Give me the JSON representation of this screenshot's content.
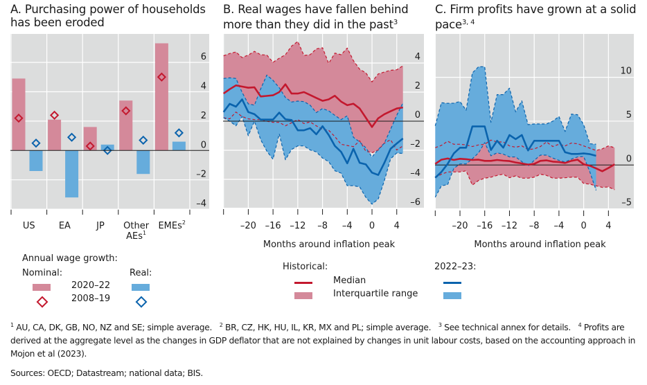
{
  "colors": {
    "nominal_bar": "#d4899a",
    "nominal_diamond": "#c3182e",
    "real_bar": "#66acdc",
    "real_diamond": "#0a63ad",
    "hist_median": "#c3182e",
    "hist_iqr": "#d4899a",
    "recent_median": "#0a63ad",
    "recent_iqr": "#66acdc",
    "plot_bg": "#dcdddd",
    "grid": "#ffffff"
  },
  "panels": {
    "a": {
      "title": "A. Purchasing power of households",
      "title2": "has been eroded"
    },
    "b": {
      "title": "B. Real wages have fallen behind",
      "title2": "more than they did in the past",
      "title2_sup": "3"
    },
    "c": {
      "title": "C. Firm profits have grown at a solid",
      "title2": "pace",
      "title2_sup": "3, 4"
    }
  },
  "legend_a": {
    "heading": "Annual wage growth:",
    "nominal": "Nominal:",
    "real": "Real:",
    "period1": "2020–22",
    "period2": "2008–19"
  },
  "legend_bc": {
    "historical": "Historical:",
    "recent": "2022–23:",
    "median": "Median",
    "iqr": "Interquartile range"
  },
  "footnotes": {
    "n1_sup": "1",
    "n1": " AU, CA, DK, GB, NO, NZ and SE; simple average.",
    "n2_sup": "2",
    "n2": " BR, CZ, HK, HU, IL, KR, MX and PL; simple average.",
    "n3_sup": "3",
    "n3": " See technical annex for details.",
    "n4_sup": "4",
    "n4a": " Profits are derived at the aggregate level as the changes in GDP deflator that are not explained by changes in unit labour costs,",
    "n4b": "based on the accounting approach in Mojon et al (2023).",
    "sources": "Sources: OECD; Datastream; national data; BIS."
  },
  "chart_data": [
    {
      "type": "bar",
      "title": "A. Purchasing power of households has been eroded",
      "categories": [
        "US",
        "EA",
        "JP",
        "Other AEs",
        "EMEs"
      ],
      "category_labels": [
        [
          "US"
        ],
        [
          "EA"
        ],
        [
          "JP"
        ],
        [
          "Other",
          "AEs"
        ],
        [
          "EMEs"
        ]
      ],
      "category_sups": [
        "",
        "",
        "",
        "1",
        "2"
      ],
      "series": [
        {
          "name": "Nominal 2020–22",
          "kind": "bar",
          "values": [
            4.9,
            2.1,
            1.6,
            3.4,
            7.3
          ]
        },
        {
          "name": "Real 2020–22",
          "kind": "bar",
          "values": [
            -1.4,
            -3.2,
            0.4,
            -1.6,
            0.6
          ]
        },
        {
          "name": "Nominal 2008–19",
          "kind": "diamond",
          "values": [
            2.2,
            2.4,
            0.3,
            2.7,
            5.0
          ]
        },
        {
          "name": "Real 2008–19",
          "kind": "diamond",
          "values": [
            0.5,
            0.9,
            0.0,
            0.7,
            1.2
          ]
        }
      ],
      "ylim": [
        -4,
        8
      ],
      "yticks": [
        6,
        4,
        2,
        0,
        -2,
        -4
      ],
      "ytick_labels": [
        "6",
        "4",
        "2",
        "0",
        "–2",
        "–4"
      ],
      "grid": true,
      "ylabel": "",
      "xlabel": ""
    },
    {
      "type": "line",
      "title": "B. Real wages have fallen behind more than they did in the past",
      "xlabel": "Months around inflation peak",
      "x": [
        -24,
        -23,
        -22,
        -21,
        -20,
        -19,
        -18,
        -17,
        -16,
        -15,
        -14,
        -13,
        -12,
        -11,
        -10,
        -9,
        -8,
        -7,
        -6,
        -5,
        -4,
        -3,
        -2,
        -1,
        0,
        1,
        2,
        3,
        4,
        5
      ],
      "xlim": [
        -24,
        8
      ],
      "xticks": [
        -24,
        -20,
        -16,
        -12,
        -8,
        -4,
        0,
        4
      ],
      "xtick_labels": [
        "",
        "–20",
        "–16",
        "–12",
        "–8",
        "–4",
        "0",
        "4"
      ],
      "ylim": [
        -6,
        5.9
      ],
      "yticks": [
        4,
        2,
        0,
        -2,
        -4,
        -6
      ],
      "ytick_labels": [
        "4",
        "2",
        "0",
        "–2",
        "–4",
        "–6"
      ],
      "grid": true,
      "series": [
        {
          "name": "Historical median",
          "values": [
            1.9,
            2.2,
            2.46,
            2.38,
            2.3,
            2.33,
            1.7,
            1.74,
            1.78,
            2.0,
            2.54,
            1.9,
            1.9,
            2.0,
            1.8,
            1.6,
            1.4,
            1.5,
            1.75,
            1.35,
            1.1,
            1.2,
            0.87,
            0.24,
            -0.4,
            0.2,
            0.48,
            0.68,
            0.87,
            0.95
          ]
        },
        {
          "name": "Historical upper quartile",
          "values": [
            4.5,
            4.65,
            4.76,
            4.37,
            4.55,
            4.8,
            4.57,
            4.55,
            4.05,
            4.33,
            4.57,
            5.16,
            5.48,
            4.52,
            4.57,
            4.97,
            5.05,
            3.97,
            4.68,
            4.57,
            5.03,
            4.16,
            3.57,
            3.33,
            2.7,
            3.25,
            3.38,
            3.5,
            3.54,
            3.81
          ]
        },
        {
          "name": "Historical lower quartile",
          "values": [
            0.24,
            0.16,
            0.63,
            0.32,
            0.16,
            0.11,
            0.11,
            0,
            -0.08,
            -0.08,
            -0.32,
            -0.11,
            0.11,
            -0.16,
            -0.05,
            -0.32,
            -0.56,
            -0.63,
            -1.06,
            -1.59,
            -1.67,
            -1.75,
            -1.35,
            -2.06,
            -2.17,
            -1.98,
            -1.51,
            -1.27,
            -1.98,
            -1.7
          ]
        },
        {
          "name": "2022–23 median",
          "values": [
            0.63,
            1.19,
            1.0,
            1.5,
            0.63,
            0.48,
            0.11,
            0.11,
            0.11,
            0.59,
            0.13,
            0.08,
            -0.63,
            -0.63,
            -0.48,
            -0.9,
            -0.35,
            -0.95,
            -1.7,
            -2.11,
            -2.9,
            -1.9,
            -2.86,
            -2.97,
            -3.54,
            -3.7,
            -2.86,
            -1.9,
            -1.54,
            -1.19
          ]
        },
        {
          "name": "2022–23 upper quartile",
          "values": [
            2.94,
            2.98,
            2.94,
            1.98,
            1.19,
            1.1,
            2.22,
            3.17,
            2.81,
            2.3,
            1.63,
            1.32,
            1.38,
            1.35,
            1.1,
            0.59,
            0.87,
            0.71,
            0.4,
            0.11,
            0.37,
            -1.11,
            -1.43,
            -1.83,
            -2.46,
            -1.95,
            -1.51,
            -0.56,
            0.4,
            1.27
          ]
        },
        {
          "name": "2022–23 lower quartile",
          "values": [
            0.24,
            0,
            -0.32,
            0.32,
            -1.0,
            0,
            -1.27,
            -2.06,
            -2.62,
            -0.87,
            -2.65,
            -1.95,
            -1.7,
            -1.7,
            -1.98,
            -2.11,
            -2.54,
            -2.78,
            -3.41,
            -3.57,
            -4.44,
            -4.44,
            -4.52,
            -5.24,
            -5.71,
            -5.35,
            -4.08,
            -2.59,
            -2.19,
            -2.22
          ]
        }
      ]
    },
    {
      "type": "line",
      "title": "C. Firm profits have grown at a solid pace",
      "xlabel": "Months around inflation peak",
      "x_hist": [
        -24,
        -23,
        -22,
        -21,
        -20,
        -19,
        -18,
        -17,
        -16,
        -15,
        -14,
        -13,
        -12,
        -11,
        -10,
        -9,
        -8,
        -7,
        -6,
        -5,
        -4,
        -3,
        -2,
        -1,
        0,
        1,
        2,
        3,
        4,
        5
      ],
      "x_recent": [
        -24,
        -23,
        -22,
        -21,
        -20,
        -19,
        -18,
        -17,
        -16,
        -15,
        -14,
        -13,
        -12,
        -11,
        -10,
        -9,
        -8,
        -7,
        -6,
        -5,
        -4,
        -3,
        -2,
        -1,
        0,
        1,
        2
      ],
      "xlim": [
        -24,
        8
      ],
      "xticks": [
        -24,
        -20,
        -16,
        -12,
        -8,
        -4,
        0,
        4
      ],
      "xtick_labels": [
        "",
        "–20",
        "–16",
        "–12",
        "–8",
        "–4",
        "0",
        "4"
      ],
      "ylim": [
        -5,
        14.9
      ],
      "yticks": [
        10,
        5,
        0,
        -5
      ],
      "ytick_labels": [
        "10",
        "5",
        "0",
        "–5"
      ],
      "grid": true,
      "series": [
        {
          "name": "Historical median",
          "values": [
            0.13,
            0.61,
            0.74,
            0.58,
            0.71,
            0.66,
            0.58,
            0.61,
            0.47,
            0.47,
            0.58,
            0.5,
            0.45,
            0.29,
            0.18,
            0.05,
            0.13,
            0.47,
            0.53,
            0.39,
            0.34,
            0.24,
            0.47,
            0.61,
            0.08,
            -0.08,
            -0.39,
            -0.71,
            -0.34,
            0.08
          ]
        },
        {
          "name": "Historical upper quartile",
          "values": [
            1.97,
            2.24,
            2.71,
            2.37,
            2.37,
            2.29,
            2.11,
            2.29,
            2.37,
            2.84,
            2.63,
            2.63,
            2.18,
            2.03,
            2.18,
            1.76,
            1.84,
            2.11,
            2.63,
            2.11,
            2.37,
            2.18,
            2.5,
            2.42,
            2.18,
            1.92,
            1.66,
            1.84,
            2.18,
            1.97
          ]
        },
        {
          "name": "Historical lower quartile",
          "values": [
            -1.45,
            -1.05,
            -0.79,
            -0.79,
            -0.79,
            -0.66,
            -2.29,
            -1.76,
            -1.5,
            -1.39,
            -1.18,
            -1.05,
            -1.45,
            -1.24,
            -1.5,
            -1.5,
            -1.39,
            -1.05,
            -1.18,
            -1.5,
            -1.5,
            -1.45,
            -1.39,
            -1.39,
            -2.11,
            -2.18,
            -2.37,
            -2.55,
            -2.5,
            -2.82
          ]
        },
        {
          "name": "2022–23 median",
          "values": [
            -1.45,
            -0.79,
            0.13,
            1.32,
            1.97,
            1.97,
            4.4,
            4.4,
            4.4,
            1.71,
            2.76,
            1.97,
            3.42,
            2.95,
            3.42,
            1.66,
            2.76,
            2.76,
            2.76,
            2.76,
            2.76,
            1.45,
            1.26,
            1.26,
            1.32,
            1.24,
            1.05
          ]
        },
        {
          "name": "2022–23 upper quartile",
          "values": [
            4.47,
            7.1,
            7.03,
            7.05,
            7.24,
            6.24,
            10.5,
            11.2,
            11.2,
            4.87,
            8.03,
            8.03,
            8.76,
            6.05,
            7.32,
            4.6,
            4.68,
            4.68,
            4.68,
            5.0,
            5.53,
            3.82,
            5.79,
            5.74,
            4.6,
            2.42,
            2.37
          ]
        },
        {
          "name": "2022–23 lower quartile",
          "values": [
            -3.68,
            -2.37,
            -2.24,
            -0.39,
            0.13,
            0.13,
            0.71,
            1.39,
            2.55,
            1.05,
            1.39,
            1.24,
            0.92,
            0.92,
            0.39,
            -0.13,
            0.53,
            1.13,
            1.13,
            0.79,
            0.53,
            0.34,
            0.66,
            0.92,
            0.97,
            -0.79,
            -2.89
          ]
        }
      ]
    }
  ]
}
